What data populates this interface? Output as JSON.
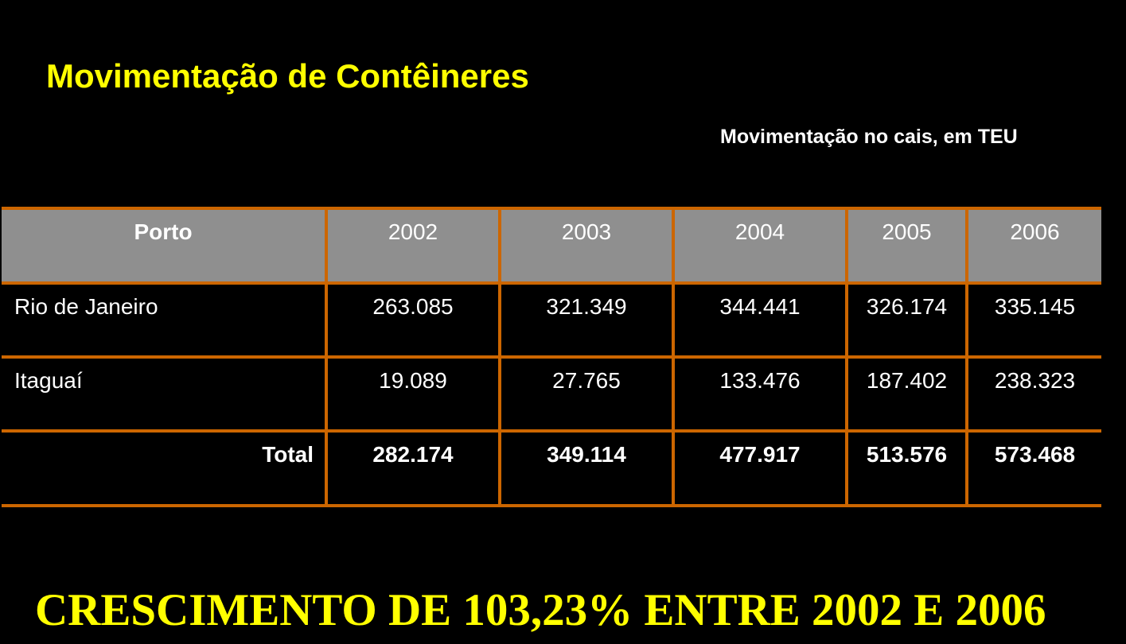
{
  "title": "Movimentação de Contêineres",
  "subtitle": "Movimentação no cais, em  TEU",
  "table": {
    "headers": [
      "Porto",
      "2002",
      "2003",
      "2004",
      "2005",
      "2006"
    ],
    "rows": [
      [
        "Rio de Janeiro",
        "263.085",
        "321.349",
        "344.441",
        "326.174",
        "335.145"
      ],
      [
        "Itaguaí",
        "19.089",
        "27.765",
        "133.476",
        "187.402",
        "238.323"
      ]
    ],
    "total": [
      "Total",
      "282.174",
      "349.114",
      "477.917",
      "513.576",
      "573.468"
    ]
  },
  "footer": "CRESCIMENTO DE 103,23% ENTRE 2002 E 2006",
  "colors": {
    "title": "#ffff00",
    "border": "#cc6600",
    "header_bg": "#8f8f8f",
    "background": "#000000"
  }
}
